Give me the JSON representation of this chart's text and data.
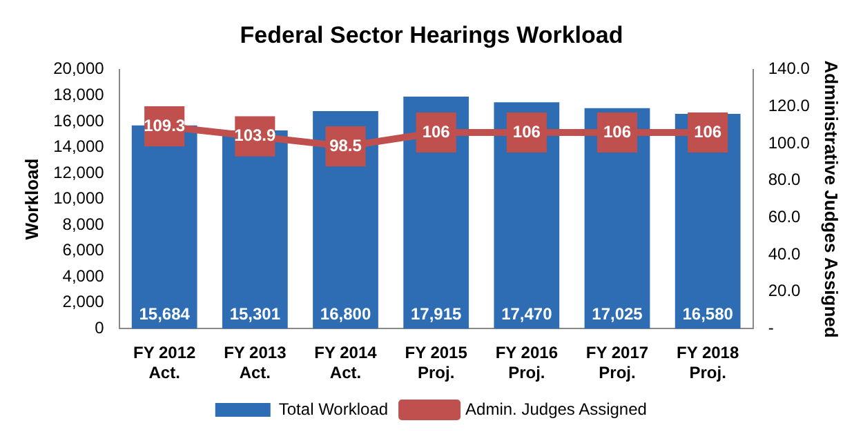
{
  "chart_data": {
    "type": "bar",
    "title": "Federal Sector Hearings Workload",
    "ylabel": "Workload",
    "y2label": "Administrative Judges Assigned",
    "categories": [
      "FY 2012\nAct.",
      "FY 2013\nAct.",
      "FY 2014\nAct.",
      "FY 2015\nProj.",
      "FY 2016\nProj.",
      "FY 2017\nProj.",
      "FY 2018\nProj."
    ],
    "series": [
      {
        "name": "Total Workload",
        "color": "#2e6db4",
        "values": [
          15684,
          15301,
          16800,
          17915,
          17470,
          17025,
          16580
        ],
        "value_labels": [
          "15,684",
          "15,301",
          "16,800",
          "17,915",
          "17,470",
          "17,025",
          "16,580"
        ]
      },
      {
        "name": "Admin. Judges Assigned",
        "type": "line",
        "axis": "y2",
        "color": "#c0504d",
        "marker": "square",
        "values": [
          109.3,
          103.9,
          98.5,
          106,
          106,
          106,
          106
        ],
        "value_labels": [
          "109.3",
          "103.9",
          "98.5",
          "106",
          "106",
          "106",
          "106"
        ]
      }
    ],
    "ylim": [
      0,
      20000
    ],
    "yticks": [
      {
        "value": 0,
        "label": "0"
      },
      {
        "value": 2000,
        "label": "2,000"
      },
      {
        "value": 4000,
        "label": "4,000"
      },
      {
        "value": 6000,
        "label": "6,000"
      },
      {
        "value": 8000,
        "label": "8,000"
      },
      {
        "value": 10000,
        "label": "10,000"
      },
      {
        "value": 12000,
        "label": "12,000"
      },
      {
        "value": 14000,
        "label": "14,000"
      },
      {
        "value": 16000,
        "label": "16,000"
      },
      {
        "value": 18000,
        "label": "18,000"
      },
      {
        "value": 20000,
        "label": "20,000"
      }
    ],
    "y2lim": [
      0,
      140
    ],
    "y2ticks": [
      {
        "value": 0,
        "label": "-"
      },
      {
        "value": 20,
        "label": "20.0"
      },
      {
        "value": 40,
        "label": "40.0"
      },
      {
        "value": 60,
        "label": "60.0"
      },
      {
        "value": 80,
        "label": "80.0"
      },
      {
        "value": 100,
        "label": "100.0"
      },
      {
        "value": 120,
        "label": "120.0"
      },
      {
        "value": 140,
        "label": "140.0"
      }
    ],
    "legend": "bottom",
    "grid": false
  }
}
